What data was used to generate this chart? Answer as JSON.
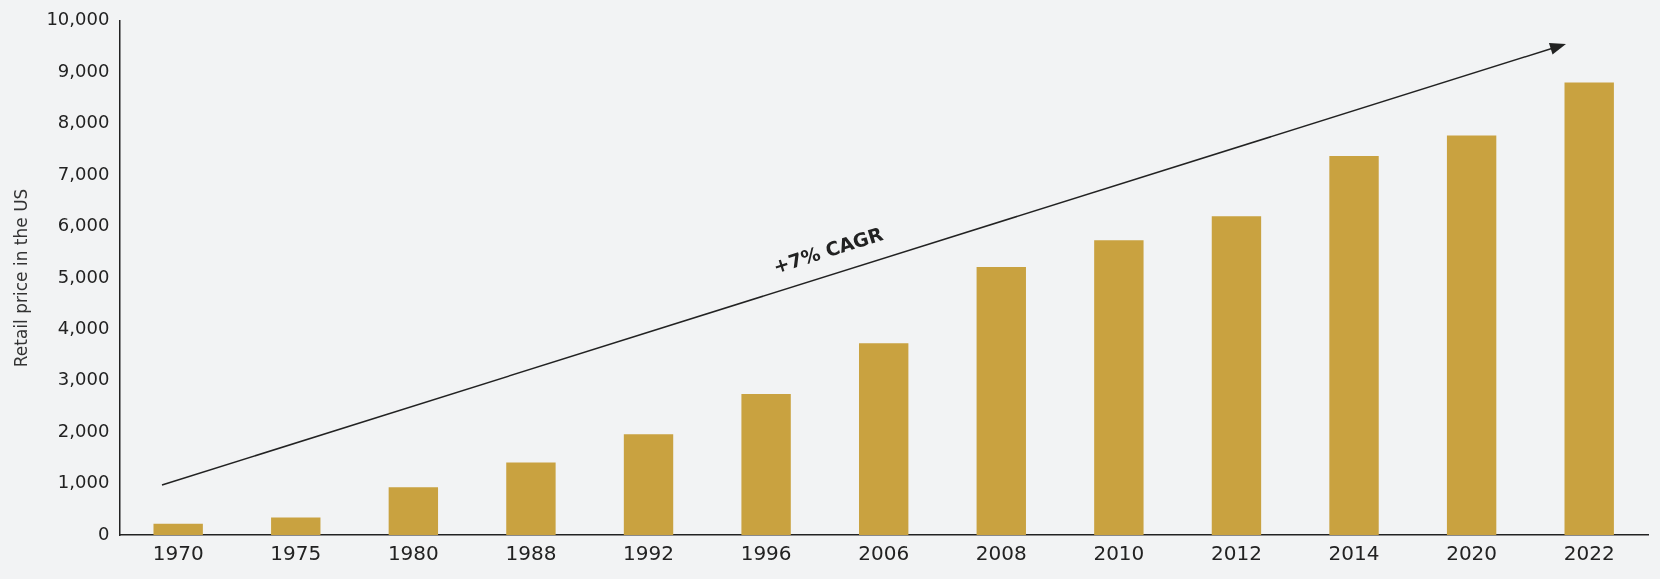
{
  "chart_data": {
    "type": "bar",
    "ylabel": "Retail price in the US",
    "categories": [
      "1970",
      "1975",
      "1980",
      "1988",
      "1992",
      "1996",
      "2006",
      "2008",
      "2010",
      "2012",
      "2014",
      "2020",
      "2022"
    ],
    "values": [
      220,
      340,
      930,
      1410,
      1960,
      2740,
      3730,
      5210,
      5730,
      6200,
      7370,
      7770,
      8800
    ],
    "color": "#c9a240",
    "ylim": [
      0,
      10000
    ],
    "yticks": [
      {
        "value": 0,
        "label": "0"
      },
      {
        "value": 1000,
        "label": "1,000"
      },
      {
        "value": 2000,
        "label": "2,000"
      },
      {
        "value": 3000,
        "label": "3,000"
      },
      {
        "value": 4000,
        "label": "4,000"
      },
      {
        "value": 5000,
        "label": "5,000"
      },
      {
        "value": 6000,
        "label": "6,000"
      },
      {
        "value": 7000,
        "label": "7,000"
      },
      {
        "value": 8000,
        "label": "8,000"
      },
      {
        "value": 9000,
        "label": "9,000"
      },
      {
        "value": 10000,
        "label": "10,000"
      }
    ],
    "grid": false,
    "legend": false,
    "annotations": [
      "+7% CAGR"
    ]
  }
}
